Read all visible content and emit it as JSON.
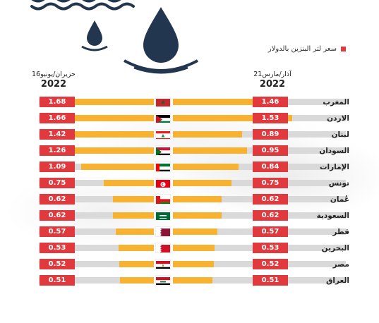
{
  "legend": {
    "label": "سعر لتر البنزين بالدولار",
    "color": "#e03a3e"
  },
  "headers": {
    "march": {
      "date": "21آذار/مارس",
      "year": "2022"
    },
    "june": {
      "date": "16حزيران/يونيو",
      "year": "2022"
    }
  },
  "colors": {
    "bar": "#f7b232",
    "value_box": "#e03a3e",
    "track": "#d9d9d9"
  },
  "chart_data": {
    "type": "bar",
    "categories": [
      "المغرب",
      "الاردن",
      "لبنان",
      "السودان",
      "الإمارات",
      "تونس",
      "عُمان",
      "السعودية",
      "قطر",
      "البحرين",
      "مصر",
      "العراق"
    ],
    "series": [
      {
        "name": "21آذار/مارس 2022",
        "values": [
          1.46,
          1.53,
          0.89,
          0.95,
          0.84,
          0.75,
          0.62,
          0.62,
          0.57,
          0.53,
          0.52,
          0.51
        ]
      },
      {
        "name": "16حزيران/يونيو 2022",
        "values": [
          1.68,
          1.66,
          1.42,
          1.26,
          1.09,
          0.75,
          0.62,
          0.62,
          0.57,
          0.53,
          0.52,
          0.51
        ]
      }
    ],
    "value_labels_march": [
      "1.46",
      "1.53",
      "0.89",
      "0.95",
      "0.84",
      "0.75",
      "0.62",
      "0.62",
      "0.57",
      "0.53",
      "0.52",
      "0.51"
    ],
    "value_labels_june": [
      "1.68",
      "1.66",
      "1.42",
      "1.26",
      "1.09",
      "0.75",
      "0.62",
      "0.62",
      "0.57",
      "0.53",
      "0.52",
      "0.51"
    ],
    "flags": [
      "morocco-flag",
      "jordan-flag",
      "lebanon-flag",
      "sudan-flag",
      "uae-flag",
      "tunisia-flag",
      "oman-flag",
      "saudi-flag",
      "qatar-flag",
      "bahrain-flag",
      "egypt-flag",
      "iraq-flag"
    ]
  }
}
